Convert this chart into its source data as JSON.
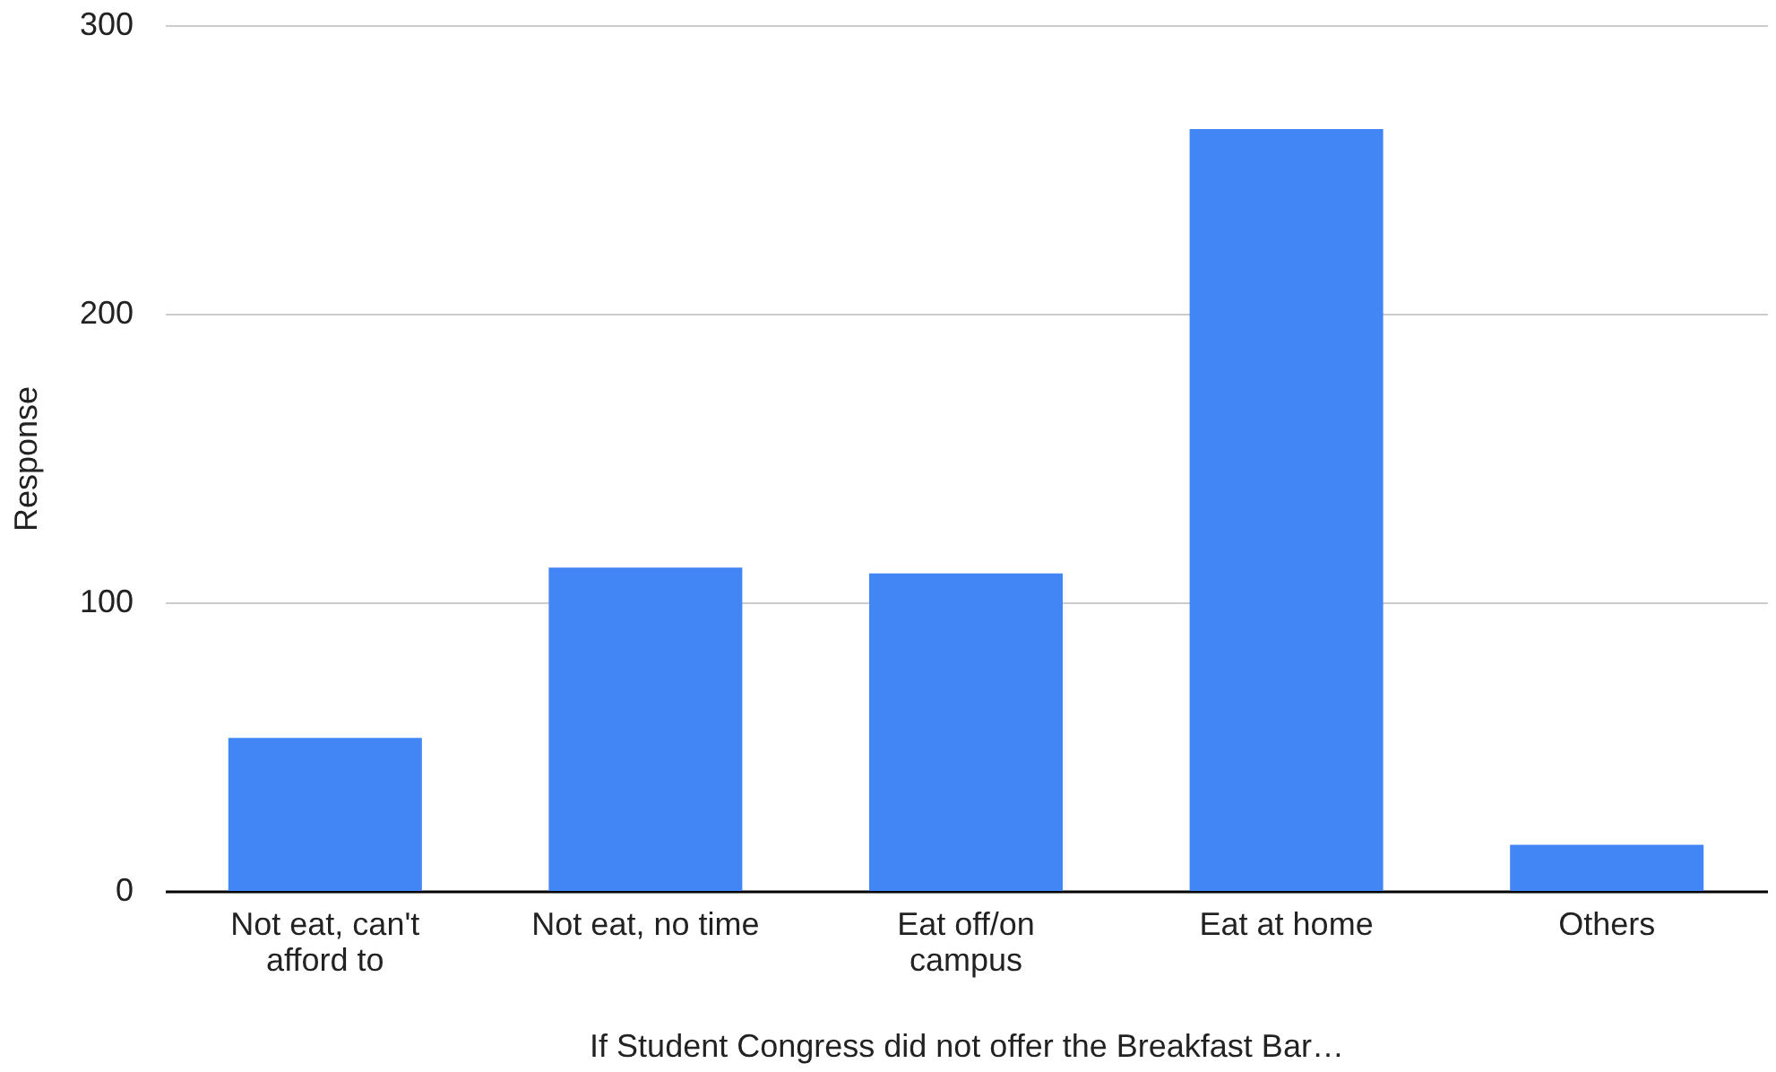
{
  "chart_data": {
    "type": "bar",
    "xlabel": "If Student Congress did not offer the Breakfast Bar…",
    "ylabel": "Response",
    "categories": [
      "Not eat, can't afford to",
      "Not eat, no time",
      "Eat off/on campus",
      "Eat at home",
      "Others"
    ],
    "values": [
      53,
      112,
      110,
      264,
      16
    ],
    "color": "#4285f4",
    "ylim": [
      0,
      300
    ],
    "yticks": [
      0,
      100,
      200,
      300
    ],
    "grid": "y"
  }
}
